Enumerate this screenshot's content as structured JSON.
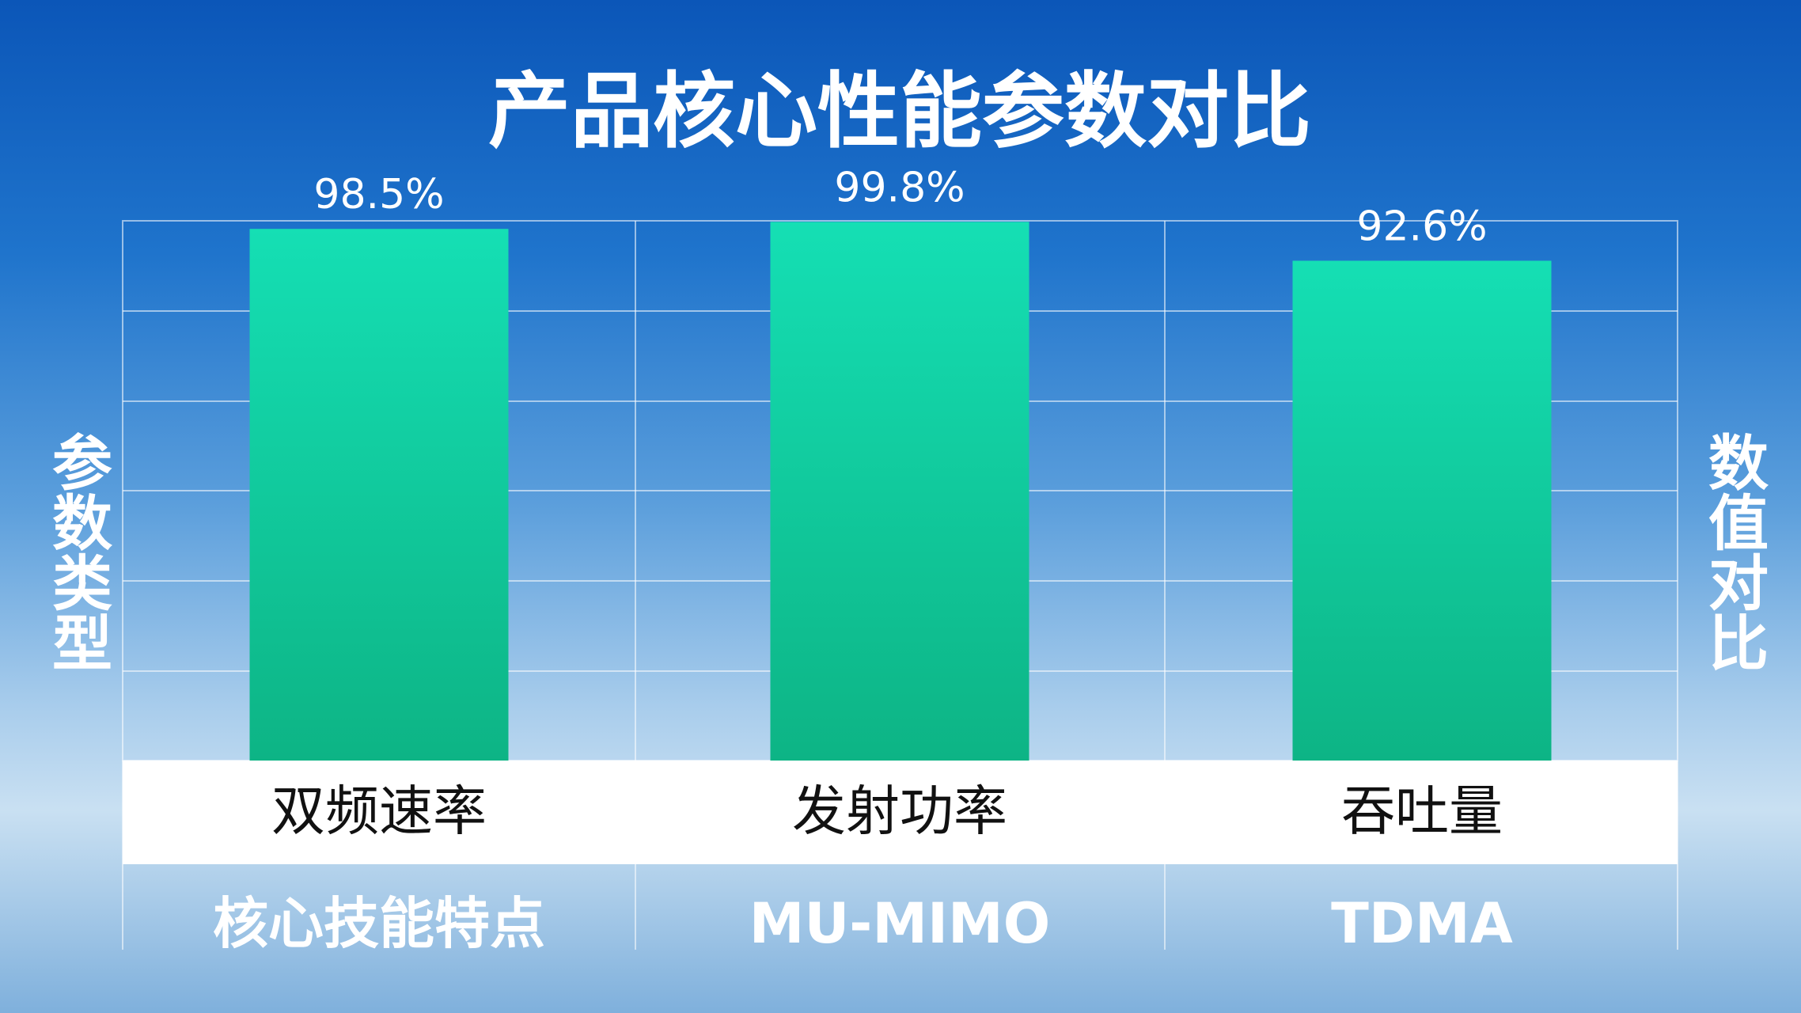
{
  "chart_data": {
    "type": "bar",
    "title": "产品核心性能参数对比",
    "y_label": "参数类型",
    "y2_label": "数值对比",
    "categories": [
      "双频速率",
      "发射功率",
      "吞吐量"
    ],
    "values": [
      98.5,
      99.8,
      92.6
    ],
    "value_labels": [
      "98.5%",
      "99.8%",
      "92.6%"
    ],
    "footer_labels": [
      "核心技能特点",
      "MU-MIMO",
      "TDMA"
    ],
    "color": "#0ccf9f",
    "ylim": [
      0,
      100
    ]
  }
}
